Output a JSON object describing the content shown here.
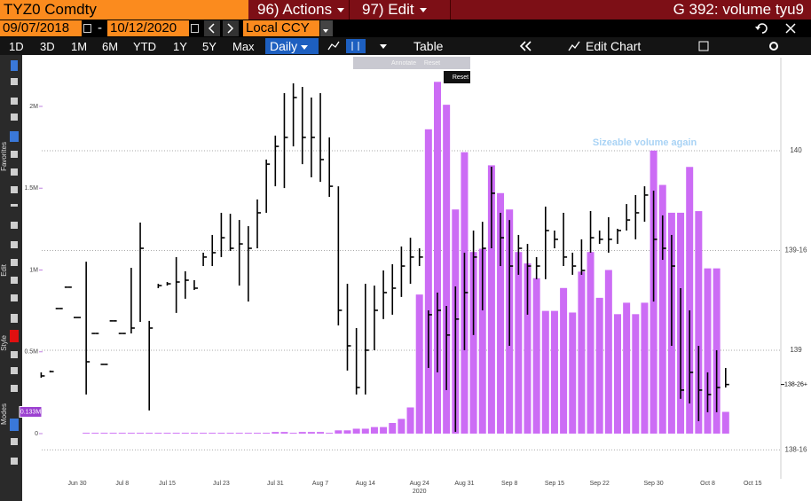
{
  "header": {
    "ticker": "TYZ0 Comdty",
    "actions": "96) Actions",
    "edit": "97) Edit",
    "title": "G 392: volume tyu9"
  },
  "controls": {
    "start_date": "09/07/2018",
    "separator": "-",
    "end_date": "10/12/2020",
    "currency": "Local CCY"
  },
  "toolbar": {
    "ranges": [
      "1D",
      "3D",
      "1M",
      "6M",
      "YTD",
      "1Y",
      "5Y",
      "Max"
    ],
    "period": "Daily",
    "table": "Table",
    "edit_chart": "Edit Chart"
  },
  "side_labels": [
    "Favorites",
    "Edit",
    "Style",
    "Modes"
  ],
  "zoom_tools": [
    "Annotate",
    "Reset"
  ],
  "reset_button": "Reset",
  "chart_data": {
    "type": "combo",
    "annotation": "Sizeable volume again",
    "x_year_label": "2020",
    "categories": [
      null,
      null,
      null,
      null,
      "Jun 30",
      null,
      null,
      null,
      null,
      "Jul 8",
      null,
      null,
      null,
      null,
      "Jul 15",
      null,
      null,
      null,
      null,
      null,
      "Jul 23",
      null,
      null,
      null,
      null,
      null,
      "Jul 31",
      null,
      null,
      null,
      null,
      "Aug 7",
      null,
      null,
      null,
      null,
      "Aug 14",
      null,
      null,
      null,
      null,
      null,
      "Aug 24",
      null,
      null,
      null,
      null,
      "Aug 31",
      null,
      null,
      null,
      null,
      "Sep 8",
      null,
      null,
      null,
      null,
      "Sep 15",
      null,
      null,
      null,
      null,
      "Sep 22",
      null,
      null,
      null,
      null,
      null,
      "Sep 30",
      null,
      null,
      null,
      null,
      null,
      "Oct 8",
      null,
      null,
      null,
      null,
      "Oct 15"
    ],
    "ylim": [
      -0.168,
      2.298
    ],
    "yticks": [
      0,
      {
        "value": 0.5,
        "label": "0.5M"
      },
      {
        "value": 1,
        "label": "1M"
      },
      {
        "value": 1.5,
        "label": "1.5M"
      },
      {
        "value": 2,
        "label": "2M"
      }
    ],
    "y2lim": [
      138.444,
      140.467
    ],
    "y2ticks": [
      {
        "value": 138.5,
        "label": "138-16"
      },
      139,
      {
        "value": 139.5,
        "label": "139-16"
      },
      140
    ],
    "grid": true,
    "last_price": {
      "value": 138.828,
      "label": "138-26+"
    },
    "last_volume": {
      "value": 0.133,
      "label": "0.133M"
    },
    "series": [
      {
        "type": "bar",
        "color": "#cc6cf5",
        "values": [
          null,
          null,
          null,
          null,
          null,
          0.005,
          0.005,
          0.005,
          0.005,
          0.005,
          0.005,
          0.005,
          0.005,
          0.005,
          0.005,
          0.005,
          0.005,
          0.005,
          0.005,
          0.005,
          0.005,
          0.005,
          0.005,
          0.005,
          0.005,
          0.005,
          0.01,
          0.01,
          0.005,
          0.01,
          0.01,
          0.01,
          0.005,
          0.02,
          0.02,
          0.03,
          0.03,
          0.04,
          0.04,
          0.065,
          0.09,
          0.16,
          0.85,
          1.86,
          2.15,
          2.01,
          1.37,
          1.72,
          1.11,
          1.13,
          1.64,
          1.47,
          1.37,
          1.11,
          1.04,
          0.95,
          0.75,
          0.75,
          0.89,
          0.74,
          0.99,
          1.11,
          0.83,
          1.0,
          0.73,
          0.8,
          0.73,
          0.8,
          1.73,
          1.52,
          1.35,
          1.35,
          1.63,
          1.36,
          1.01,
          1.01,
          0.133,
          null,
          null,
          null
        ]
      },
      {
        "type": "ohlc",
        "axis": "y2",
        "color": "#000000",
        "high": [
          138.889,
          138.898,
          139.209,
          139.316,
          139.164,
          139.444,
          139.084,
          138.929,
          139.147,
          139.084,
          139.413,
          139.64,
          139.147,
          139.333,
          139.342,
          139.467,
          139.396,
          139.351,
          139.489,
          139.578,
          139.689,
          139.684,
          139.653,
          139.622,
          139.756,
          139.956,
          140.076,
          140.289,
          140.338,
          140.32,
          140.267,
          140.289,
          140.067,
          139.822,
          139.333,
          139.111,
          139.333,
          139.324,
          139.4,
          139.431,
          139.52,
          139.564,
          139.511,
          139.2,
          139.289,
          139.222,
          139.32,
          139.489,
          139.6,
          139.644,
          139.92,
          139.689,
          139.653,
          139.578,
          139.533,
          139.467,
          139.72,
          139.6,
          139.689,
          139.489,
          139.556,
          139.698,
          139.6,
          139.667,
          139.609,
          139.733,
          139.778,
          139.822,
          139.8,
          139.676,
          139.578,
          139.311,
          139.2,
          139.022,
          138.889,
          139.0,
          138.911,
          null,
          null,
          null
        ],
        "low": [
          138.862,
          138.889,
          139.209,
          139.316,
          139.164,
          138.778,
          139.084,
          138.929,
          139.147,
          139.084,
          139.084,
          139.142,
          138.698,
          139.311,
          139.324,
          139.187,
          139.258,
          139.302,
          139.422,
          139.422,
          139.467,
          139.498,
          139.324,
          139.244,
          139.511,
          139.689,
          139.822,
          139.813,
          140.022,
          139.933,
          139.867,
          139.844,
          139.769,
          139.124,
          138.898,
          138.778,
          138.778,
          139.0,
          139.156,
          139.178,
          139.267,
          139.333,
          139.422,
          138.911,
          138.889,
          138.8,
          138.591,
          139.0,
          139.076,
          139.2,
          139.511,
          139.422,
          139.022,
          139.378,
          139.178,
          139.356,
          139.356,
          139.511,
          139.422,
          139.378,
          139.378,
          139.489,
          139.533,
          139.489,
          139.533,
          139.6,
          139.556,
          139.644,
          139.244,
          139.453,
          139.022,
          138.756,
          138.733,
          138.644,
          138.689,
          138.689,
          138.813,
          null,
          null,
          null
        ],
        "close": [
          138.871,
          138.893,
          139.209,
          139.316,
          139.164,
          138.942,
          139.084,
          138.929,
          139.147,
          139.084,
          139.111,
          139.511,
          139.111,
          139.324,
          139.333,
          139.342,
          139.351,
          139.311,
          139.467,
          139.489,
          139.564,
          139.511,
          139.533,
          139.511,
          139.689,
          139.933,
          140.022,
          140.067,
          140.267,
          140.067,
          140.067,
          139.956,
          139.822,
          139.2,
          139.022,
          138.813,
          139.0,
          139.2,
          139.289,
          139.311,
          139.422,
          139.467,
          139.467,
          139.178,
          139.2,
          139.076,
          139.156,
          139.289,
          139.467,
          139.511,
          139.787,
          139.564,
          139.422,
          139.511,
          139.422,
          139.422,
          139.6,
          139.556,
          139.467,
          139.422,
          139.4,
          139.564,
          139.556,
          139.556,
          139.6,
          139.653,
          139.689,
          139.778,
          139.556,
          139.511,
          139.422,
          138.8,
          138.889,
          138.8,
          138.778,
          138.813,
          138.828,
          null,
          null,
          null
        ]
      }
    ]
  }
}
